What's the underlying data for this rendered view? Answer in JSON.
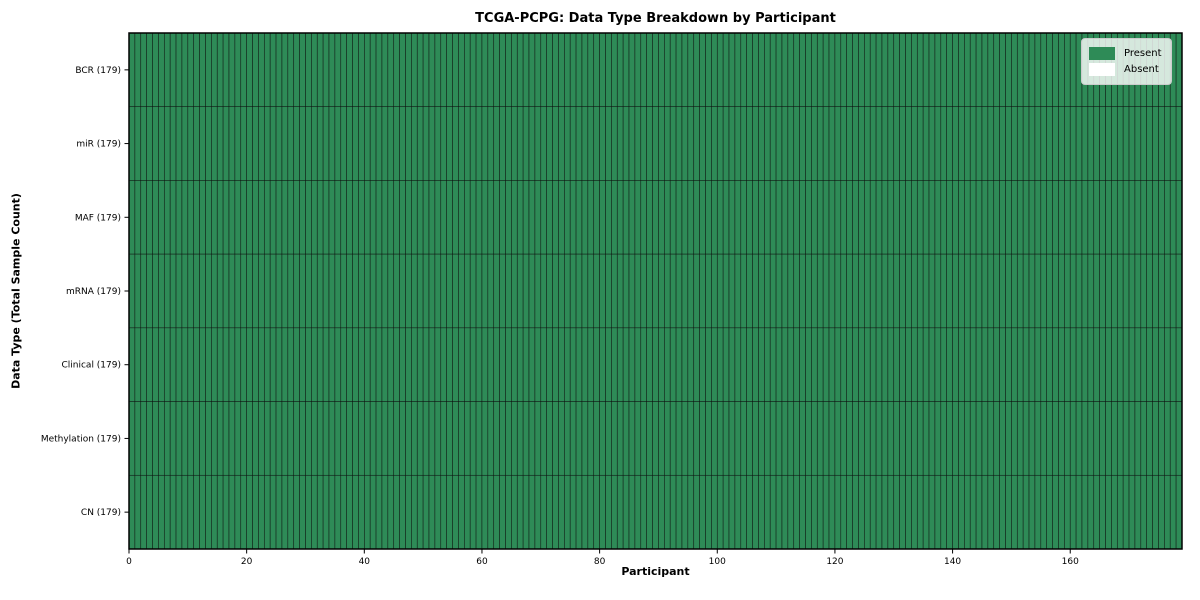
{
  "chart_data": {
    "type": "heatmap",
    "title": "TCGA-PCPG: Data Type Breakdown by Participant",
    "xlabel": "Participant",
    "ylabel": "Data Type (Total Sample Count)",
    "x_ticks": [
      0,
      20,
      40,
      60,
      80,
      100,
      120,
      140,
      160
    ],
    "xlim": [
      0,
      179
    ],
    "n_participants": 179,
    "rows": [
      {
        "label": "BCR (179)",
        "data_type": "BCR",
        "total_sample_count": 179,
        "present_count": 179,
        "absent_count": 0
      },
      {
        "label": "miR (179)",
        "data_type": "miR",
        "total_sample_count": 179,
        "present_count": 179,
        "absent_count": 0
      },
      {
        "label": "MAF (179)",
        "data_type": "MAF",
        "total_sample_count": 179,
        "present_count": 179,
        "absent_count": 0
      },
      {
        "label": "mRNA (179)",
        "data_type": "mRNA",
        "total_sample_count": 179,
        "present_count": 179,
        "absent_count": 0
      },
      {
        "label": "Clinical (179)",
        "data_type": "Clinical",
        "total_sample_count": 179,
        "present_count": 179,
        "absent_count": 0
      },
      {
        "label": "Methylation (179)",
        "data_type": "Methylation",
        "total_sample_count": 179,
        "present_count": 179,
        "absent_count": 0
      },
      {
        "label": "CN (179)",
        "data_type": "CN",
        "total_sample_count": 179,
        "present_count": 179,
        "absent_count": 0
      }
    ],
    "legend": {
      "position": "upper right",
      "entries": [
        {
          "label": "Present",
          "color": "#2e8b57"
        },
        {
          "label": "Absent",
          "color": "#ffffff"
        }
      ]
    },
    "colors": {
      "present": "#2e8b57",
      "absent": "#ffffff",
      "cell_edge": "#0a0a0a",
      "spine": "#000000"
    },
    "grid": "cell-borders",
    "legend_position": "upper right"
  }
}
